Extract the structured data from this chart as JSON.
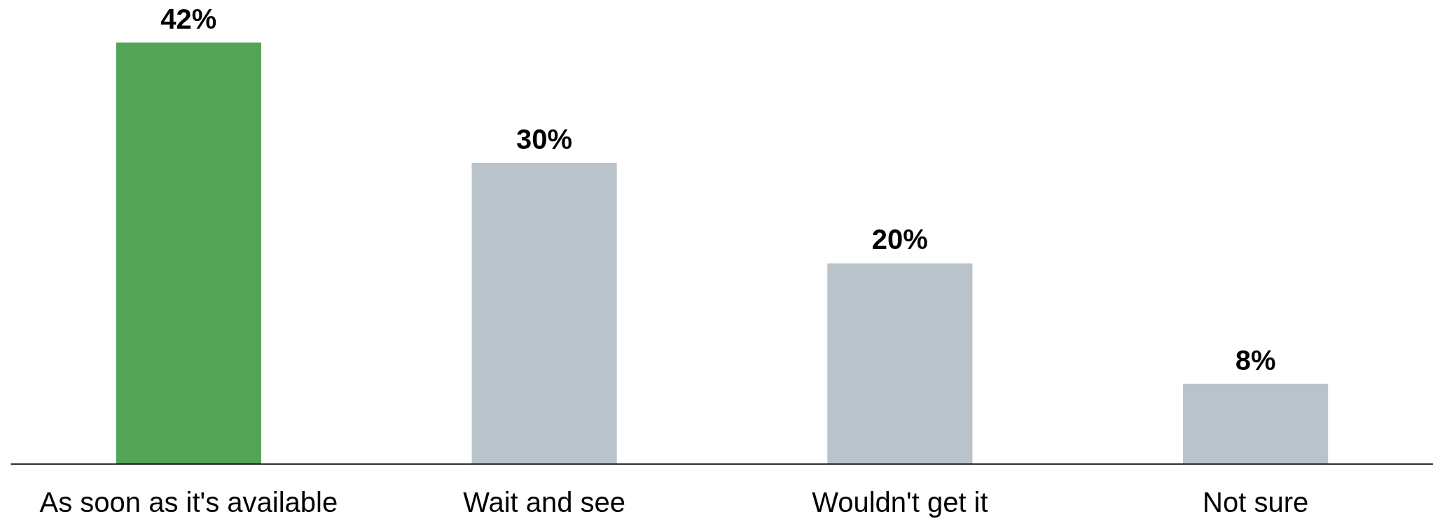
{
  "chart_data": {
    "type": "bar",
    "categories": [
      "As soon as it's available",
      "Wait and see",
      "Wouldn't get it",
      "Not sure"
    ],
    "values": [
      42,
      30,
      20,
      8
    ],
    "colors": [
      "#53a457",
      "#b9c4ca",
      "#b9c4ca",
      "#b9c4ca"
    ],
    "value_labels": [
      "42%",
      "30%",
      "20%",
      "8%"
    ]
  }
}
